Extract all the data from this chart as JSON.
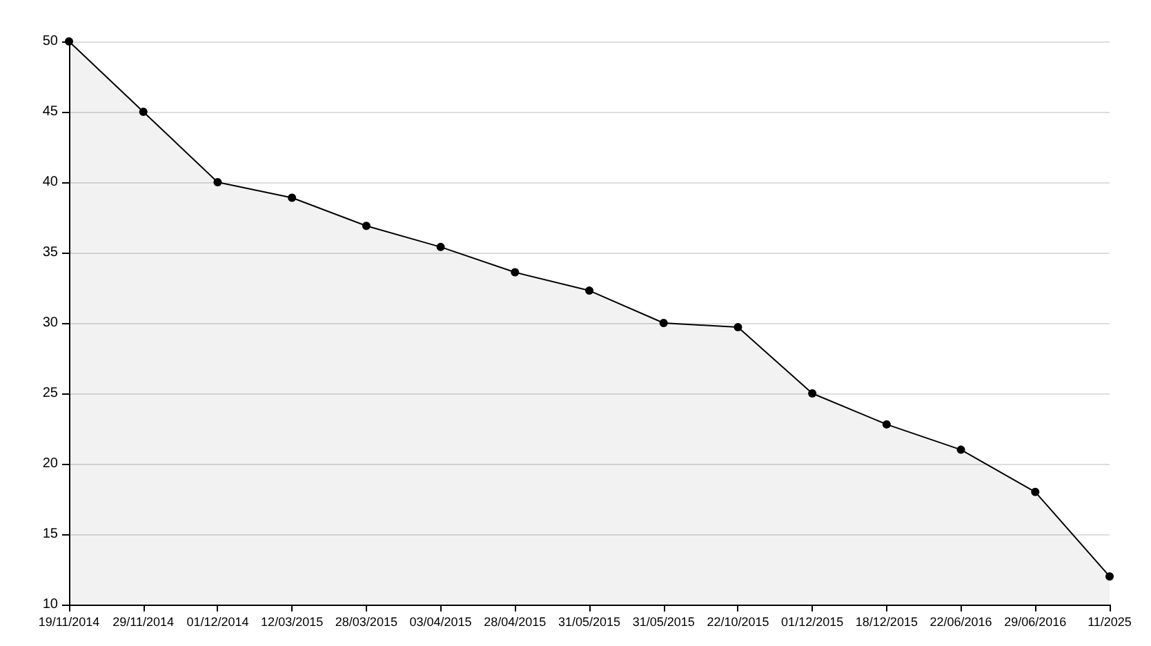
{
  "chart_data": {
    "type": "area",
    "categories": [
      "19/11/2014",
      "29/11/2014",
      "01/12/2014",
      "12/03/2015",
      "28/03/2015",
      "03/04/2015",
      "28/04/2015",
      "31/05/2015",
      "31/05/2015",
      "22/10/2015",
      "01/12/2015",
      "18/12/2015",
      "22/06/2016",
      "29/06/2016",
      "11/2025"
    ],
    "series": [
      {
        "color": "#000000",
        "values": [
          50,
          45,
          40,
          38.9,
          36.9,
          35.4,
          33.6,
          32.3,
          30,
          29.7,
          25,
          22.8,
          21,
          18,
          12
        ]
      }
    ],
    "ylim": [
      10,
      50
    ],
    "yticks": [
      10,
      15,
      20,
      25,
      30,
      35,
      40,
      45,
      50
    ],
    "grid": "y",
    "marker": "circle",
    "line_style": "solid"
  }
}
